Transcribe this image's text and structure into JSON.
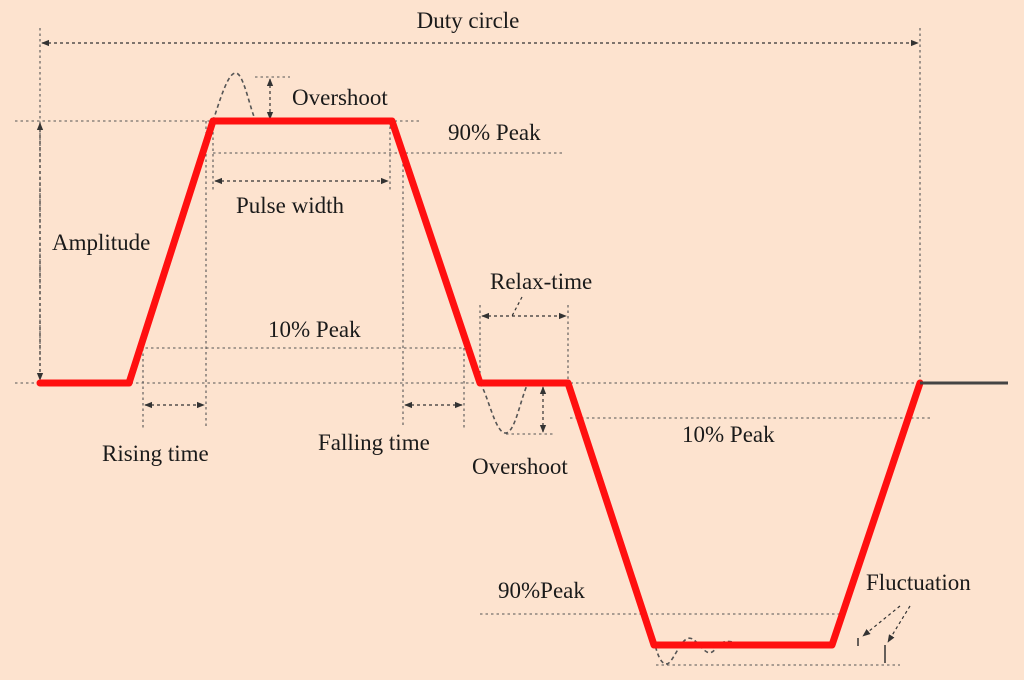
{
  "labels": {
    "duty_circle": "Duty circle",
    "overshoot_top": "Overshoot",
    "peak90_top": "90% Peak",
    "pulse_width": "Pulse width",
    "amplitude": "Amplitude",
    "relax_time": "Relax-time",
    "peak10_top": "10% Peak",
    "peak10_right": "10% Peak",
    "rising_time": "Rising time",
    "falling_time": "Falling time",
    "overshoot_bottom": "Overshoot",
    "peak90_bottom": "90%Peak",
    "fluctuation": "Fluctuation"
  },
  "colors": {
    "background": "#fde3cf",
    "waveform": "#ff1010"
  }
}
